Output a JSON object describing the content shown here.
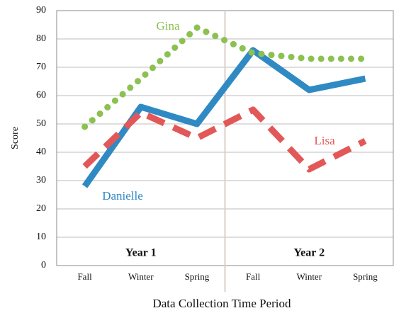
{
  "chart_data": {
    "type": "line",
    "y_label": "Score",
    "x_label": "Data Collection Time Period",
    "categories": [
      "Fall",
      "Winter",
      "Spring",
      "Fall",
      "Winter",
      "Spring"
    ],
    "groups": [
      "Year 1",
      "Year 2"
    ],
    "series": [
      {
        "name": "Danielle",
        "color": "#2f8ac4",
        "values": [
          28,
          56,
          50,
          76,
          62,
          66
        ]
      },
      {
        "name": "Gina",
        "color": "#8cc152",
        "values": [
          49,
          66,
          84,
          75,
          73,
          73
        ]
      },
      {
        "name": "Lisa",
        "color": "#e25858",
        "values": [
          35,
          54,
          45,
          55,
          34,
          44
        ]
      }
    ],
    "ylim": [
      0,
      90
    ],
    "yticks": [
      0,
      10,
      20,
      30,
      40,
      50,
      60,
      70,
      80,
      90
    ],
    "grid": true
  }
}
